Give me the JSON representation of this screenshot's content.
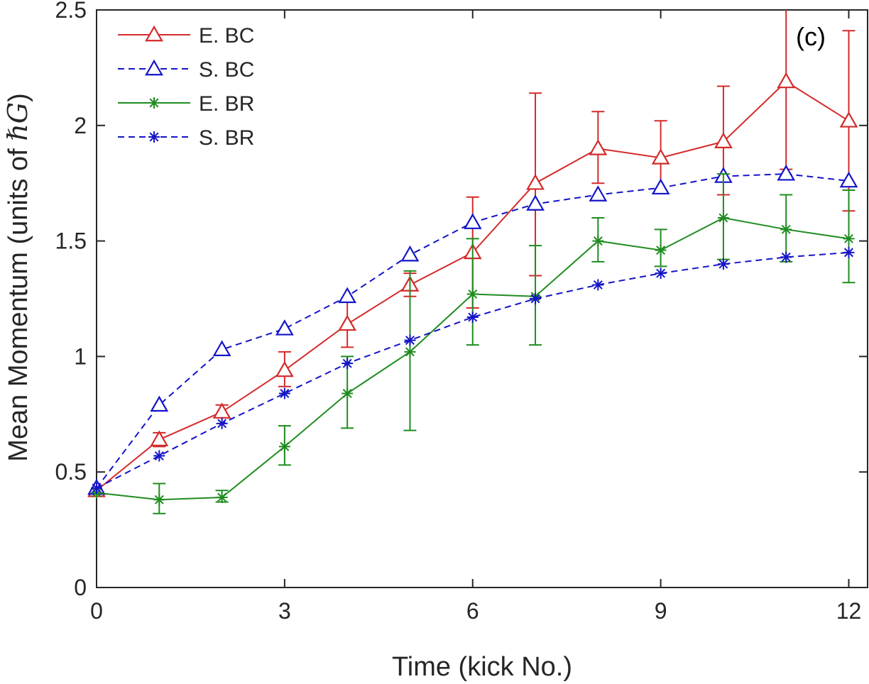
{
  "chart_data": {
    "type": "line",
    "panel_label": "(c)",
    "xlabel": "Time (kick No.)",
    "ylabel_prefix": "Mean Momentum (units of ",
    "ylabel_math": "ℏG",
    "ylabel_suffix": ")",
    "xlim": [
      0,
      12.3
    ],
    "ylim": [
      0,
      2.5
    ],
    "xticks": [
      0,
      3,
      6,
      9,
      12
    ],
    "xtick_labels": [
      "0",
      "3",
      "6",
      "9",
      "12"
    ],
    "yticks": [
      0,
      0.5,
      1,
      1.5,
      2,
      2.5
    ],
    "ytick_labels": [
      "0",
      "0.5",
      "1",
      "1.5",
      "2",
      "2.5"
    ],
    "legend_position": "top-left",
    "colors": {
      "red": "#d42a2a",
      "blue": "#1414c8",
      "green": "#1f8c1f",
      "axis": "#262626"
    },
    "series": [
      {
        "name": "E. BC",
        "color": "#d42a2a",
        "dash": "solid",
        "marker": "triangle",
        "x": [
          0,
          1,
          2,
          3,
          4,
          5,
          6,
          7,
          8,
          9,
          10,
          11,
          12
        ],
        "y": [
          0.42,
          0.64,
          0.76,
          0.94,
          1.14,
          1.31,
          1.45,
          1.75,
          1.9,
          1.86,
          1.93,
          2.19,
          2.02
        ],
        "err_low": [
          0.42,
          0.61,
          0.74,
          0.87,
          1.04,
          1.26,
          1.21,
          1.35,
          1.75,
          1.71,
          1.7,
          1.81,
          1.63
        ],
        "err_high": [
          0.42,
          0.67,
          0.79,
          1.02,
          1.24,
          1.36,
          1.69,
          2.14,
          2.06,
          2.02,
          2.17,
          2.55,
          2.41
        ]
      },
      {
        "name": "S. BC",
        "color": "#1414c8",
        "dash": "dashed",
        "marker": "triangle",
        "x": [
          0,
          1,
          2,
          3,
          4,
          5,
          6,
          7,
          8,
          9,
          10,
          11,
          12
        ],
        "y": [
          0.43,
          0.79,
          1.03,
          1.12,
          1.26,
          1.44,
          1.58,
          1.66,
          1.7,
          1.73,
          1.78,
          1.79,
          1.76
        ]
      },
      {
        "name": "E. BR",
        "color": "#1f8c1f",
        "dash": "solid",
        "marker": "star",
        "x": [
          0,
          1,
          2,
          3,
          4,
          5,
          6,
          7,
          8,
          9,
          10,
          11,
          12
        ],
        "y": [
          0.41,
          0.38,
          0.39,
          0.61,
          0.84,
          1.02,
          1.27,
          1.26,
          1.5,
          1.46,
          1.6,
          1.55,
          1.51
        ],
        "err_low": [
          0.41,
          0.32,
          0.37,
          0.53,
          0.69,
          0.68,
          1.05,
          1.05,
          1.41,
          1.39,
          1.42,
          1.41,
          1.32
        ],
        "err_high": [
          0.41,
          0.45,
          0.42,
          0.7,
          1.0,
          1.37,
          1.51,
          1.48,
          1.6,
          1.55,
          1.79,
          1.7,
          1.72
        ]
      },
      {
        "name": "S. BR",
        "color": "#1414c8",
        "dash": "dashed",
        "marker": "star",
        "x": [
          0,
          1,
          2,
          3,
          4,
          5,
          6,
          7,
          8,
          9,
          10,
          11,
          12
        ],
        "y": [
          0.43,
          0.57,
          0.71,
          0.84,
          0.97,
          1.07,
          1.17,
          1.25,
          1.31,
          1.36,
          1.4,
          1.43,
          1.45
        ]
      }
    ]
  }
}
